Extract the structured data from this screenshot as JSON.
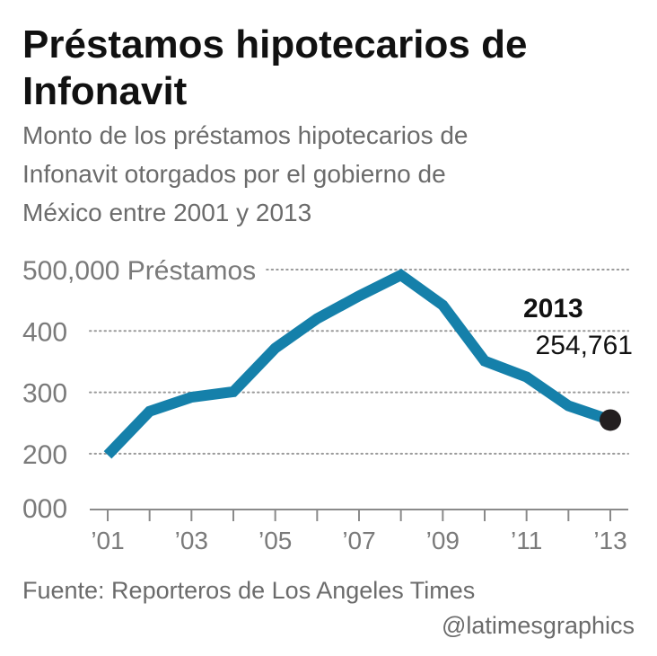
{
  "chart_data": {
    "type": "line",
    "title_lines": [
      "Préstamos hipotecarios de",
      "Infonavit"
    ],
    "subtitle_lines": [
      "Monto de los préstamos hipotecarios de",
      "Infonavit otorgados por el gobierno de",
      "México entre 2001 y 2013"
    ],
    "x": [
      2001,
      2002,
      2003,
      2004,
      2005,
      2006,
      2007,
      2008,
      2009,
      2010,
      2011,
      2012,
      2013
    ],
    "series": [
      {
        "name": "Préstamos",
        "color": "#1580aa",
        "values": [
          198000,
          269000,
          292000,
          301000,
          372000,
          420000,
          457000,
          491000,
          442000,
          351000,
          325000,
          278000,
          254761
        ],
        "value_labels": [
          null,
          null,
          null,
          null,
          null,
          null,
          null,
          null,
          null,
          null,
          null,
          null,
          "254,761"
        ]
      }
    ],
    "annotation": "2013",
    "end_marker_color": "#231f20",
    "xlim": [
      2001,
      2013
    ],
    "xticks": [
      {
        "value": 2001,
        "label": "’01"
      },
      {
        "value": 2003,
        "label": "’03"
      },
      {
        "value": 2005,
        "label": "’05"
      },
      {
        "value": 2007,
        "label": "’07"
      },
      {
        "value": 2009,
        "label": "’09"
      },
      {
        "value": 2011,
        "label": "’11"
      },
      {
        "value": 2013,
        "label": "’13"
      }
    ],
    "minor_xticks": [
      2002,
      2004,
      2006,
      2008,
      2010,
      2012
    ],
    "ylim": [
      109000,
      500000
    ],
    "yticks": [
      {
        "value": 500000,
        "label": "500,000 Préstamos"
      },
      {
        "value": 400000,
        "label": "400"
      },
      {
        "value": 300000,
        "label": "300"
      },
      {
        "value": 200000,
        "label": "200"
      }
    ],
    "baseline_label": "000",
    "grid": true,
    "source": "Fuente: Reporteros de Los Angeles Times",
    "credit": "@latimesgraphics"
  }
}
